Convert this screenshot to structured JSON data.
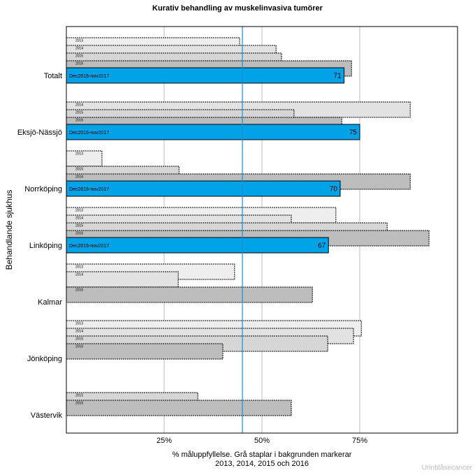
{
  "chart_data": {
    "type": "bar",
    "orientation": "horizontal",
    "title": "Kurativ behandling av muskelinvasiva tumörer",
    "xlabel": [
      "% måluppfyllelse. Grå staplar i bakgrunden markerar",
      "2013, 2014, 2015 och 2016"
    ],
    "ylabel": "Behandlande sjukhus",
    "watermark": "Urinblåsecancer",
    "categories": [
      "Totalt",
      "Eksjö-Nässjö",
      "Norrköping",
      "Linköping",
      "Kalmar",
      "Jönköping",
      "Västervik"
    ],
    "background_series": [
      {
        "name": "2013",
        "color": "#eeeeee",
        "values": [
          44.3,
          null,
          9.1,
          68.9,
          43,
          75.4,
          null
        ]
      },
      {
        "name": "2014",
        "color": "#e2e2e2",
        "values": [
          53.6,
          87.9,
          null,
          57.5,
          28.6,
          73.4,
          null
        ]
      },
      {
        "name": "2015",
        "color": "#d6d6d6",
        "values": [
          55,
          58.2,
          28.8,
          82,
          null,
          66.8,
          33.6
        ]
      },
      {
        "name": "2016",
        "color": "#bdbdbd",
        "values": [
          72.9,
          70.4,
          87.9,
          92.7,
          62.9,
          40,
          57.5
        ]
      }
    ],
    "series": [
      {
        "name": "Dec2016-nov2017",
        "color": "#00a2e8",
        "values": [
          71,
          75,
          70,
          67,
          null,
          null,
          null
        ]
      }
    ],
    "target": 45,
    "target_color": "#1b8fd0",
    "xlim": [
      0,
      100
    ],
    "xticks": [
      {
        "value": 25,
        "label": "25%"
      },
      {
        "value": 50,
        "label": "50%"
      },
      {
        "value": 75,
        "label": "75%"
      }
    ],
    "grid": true
  }
}
